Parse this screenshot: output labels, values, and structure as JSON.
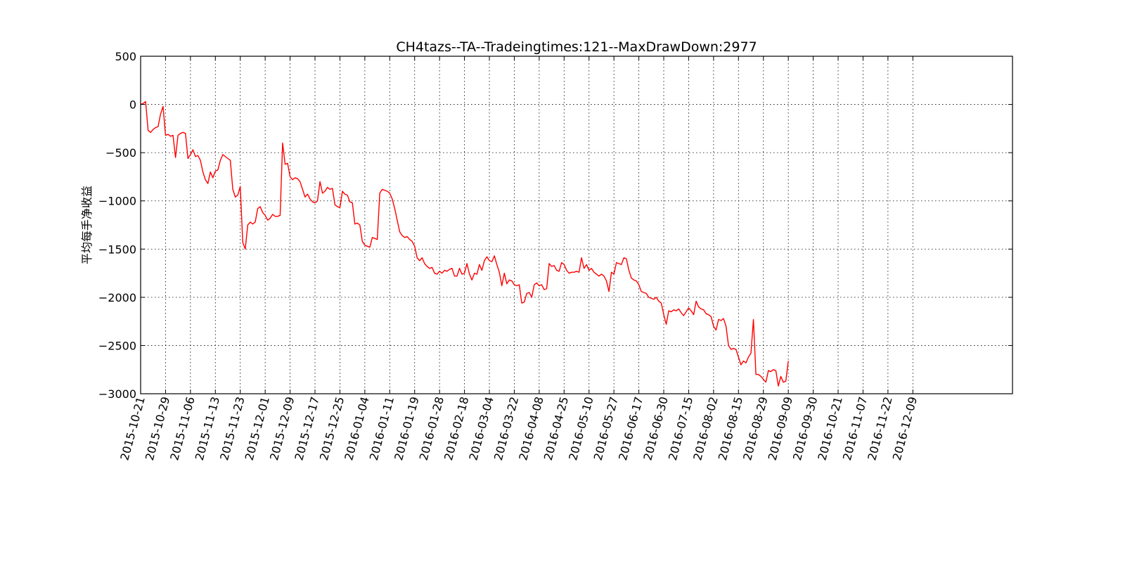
{
  "chart_data": {
    "type": "line",
    "title": "CH4tazs--TA--Tradeingtimes:121--MaxDrawDown:2977",
    "xlabel": "",
    "ylabel": "平均每手净收益",
    "ylim": [
      -3000,
      500
    ],
    "yticks": [
      500,
      0,
      -500,
      -1000,
      -1500,
      -2000,
      -2500,
      -3000
    ],
    "ytick_labels": [
      "500",
      "0",
      "−500",
      "−1000",
      "−1500",
      "−2000",
      "−2500",
      "−3000"
    ],
    "xlim": [
      0,
      350
    ],
    "xticks": [
      0,
      10,
      20,
      30,
      40,
      50,
      60,
      70,
      80,
      90,
      100,
      110,
      120,
      130,
      140,
      150,
      160,
      170,
      180,
      190,
      200,
      210,
      220,
      230,
      240,
      250,
      260,
      270,
      280,
      290,
      300,
      310
    ],
    "xtick_labels": [
      "2015-10-21",
      "2015-10-29",
      "2015-11-06",
      "2015-11-13",
      "2015-11-23",
      "2015-12-01",
      "2015-12-09",
      "2015-12-17",
      "2015-12-25",
      "2016-01-04",
      "2016-01-11",
      "2016-01-19",
      "2016-01-28",
      "2016-02-18",
      "2016-03-04",
      "2016-03-22",
      "2016-04-08",
      "2016-04-25",
      "2016-05-10",
      "2016-05-27",
      "2016-06-17",
      "2016-06-30",
      "2016-07-15",
      "2016-08-02",
      "2016-08-15",
      "2016-08-29",
      "2016-09-09",
      "2016-09-30",
      "2016-10-21",
      "2016-11-07",
      "2016-11-22",
      "2016-12-09"
    ],
    "grid": true,
    "series": [
      {
        "color": "#ff0000",
        "points": [
          [
            0,
            0
          ],
          [
            1,
            10
          ],
          [
            2,
            30
          ],
          [
            3,
            -270
          ],
          [
            4,
            -290
          ],
          [
            5,
            -260
          ],
          [
            6,
            -240
          ],
          [
            7,
            -230
          ],
          [
            8,
            -100
          ],
          [
            9,
            -20
          ],
          [
            10,
            -320
          ],
          [
            11,
            -310
          ],
          [
            12,
            -330
          ],
          [
            13,
            -320
          ],
          [
            14,
            -550
          ],
          [
            15,
            -320
          ],
          [
            16,
            -300
          ],
          [
            17,
            -290
          ],
          [
            18,
            -300
          ],
          [
            19,
            -560
          ],
          [
            20,
            -520
          ],
          [
            21,
            -470
          ],
          [
            22,
            -540
          ],
          [
            23,
            -530
          ],
          [
            24,
            -580
          ],
          [
            25,
            -700
          ],
          [
            26,
            -780
          ],
          [
            27,
            -820
          ],
          [
            28,
            -700
          ],
          [
            29,
            -760
          ],
          [
            30,
            -690
          ],
          [
            31,
            -680
          ],
          [
            32,
            -580
          ],
          [
            33,
            -520
          ],
          [
            34,
            -540
          ],
          [
            35,
            -560
          ],
          [
            36,
            -580
          ],
          [
            37,
            -880
          ],
          [
            38,
            -960
          ],
          [
            39,
            -940
          ],
          [
            40,
            -850
          ],
          [
            41,
            -1430
          ],
          [
            42,
            -1500
          ],
          [
            43,
            -1250
          ],
          [
            44,
            -1220
          ],
          [
            45,
            -1240
          ],
          [
            46,
            -1220
          ],
          [
            47,
            -1080
          ],
          [
            48,
            -1060
          ],
          [
            49,
            -1120
          ],
          [
            50,
            -1150
          ],
          [
            51,
            -1200
          ],
          [
            52,
            -1180
          ],
          [
            53,
            -1140
          ],
          [
            54,
            -1160
          ],
          [
            55,
            -1160
          ],
          [
            56,
            -1150
          ],
          [
            57,
            -400
          ],
          [
            58,
            -620
          ],
          [
            59,
            -610
          ],
          [
            60,
            -750
          ],
          [
            61,
            -780
          ],
          [
            62,
            -760
          ],
          [
            63,
            -770
          ],
          [
            64,
            -800
          ],
          [
            65,
            -880
          ],
          [
            66,
            -960
          ],
          [
            67,
            -930
          ],
          [
            68,
            -980
          ],
          [
            69,
            -1010
          ],
          [
            70,
            -1020
          ],
          [
            71,
            -1000
          ],
          [
            72,
            -800
          ],
          [
            73,
            -920
          ],
          [
            74,
            -900
          ],
          [
            75,
            -860
          ],
          [
            76,
            -880
          ],
          [
            77,
            -870
          ],
          [
            78,
            -1040
          ],
          [
            79,
            -1060
          ],
          [
            80,
            -1070
          ],
          [
            81,
            -900
          ],
          [
            82,
            -930
          ],
          [
            83,
            -940
          ],
          [
            84,
            -1010
          ],
          [
            85,
            -1020
          ],
          [
            86,
            -1240
          ],
          [
            87,
            -1230
          ],
          [
            88,
            -1250
          ],
          [
            89,
            -1420
          ],
          [
            90,
            -1460
          ],
          [
            91,
            -1470
          ],
          [
            92,
            -1480
          ],
          [
            93,
            -1380
          ],
          [
            94,
            -1390
          ],
          [
            95,
            -1400
          ],
          [
            96,
            -920
          ],
          [
            97,
            -880
          ],
          [
            98,
            -890
          ],
          [
            99,
            -900
          ],
          [
            100,
            -920
          ],
          [
            101,
            -980
          ],
          [
            102,
            -1080
          ],
          [
            103,
            -1200
          ],
          [
            104,
            -1320
          ],
          [
            105,
            -1360
          ],
          [
            106,
            -1380
          ],
          [
            107,
            -1370
          ],
          [
            108,
            -1400
          ],
          [
            109,
            -1420
          ],
          [
            110,
            -1470
          ],
          [
            111,
            -1590
          ],
          [
            112,
            -1620
          ],
          [
            113,
            -1590
          ],
          [
            114,
            -1650
          ],
          [
            115,
            -1680
          ],
          [
            116,
            -1700
          ],
          [
            117,
            -1690
          ],
          [
            118,
            -1750
          ],
          [
            119,
            -1760
          ],
          [
            120,
            -1730
          ],
          [
            121,
            -1750
          ],
          [
            122,
            -1720
          ],
          [
            123,
            -1730
          ],
          [
            124,
            -1710
          ],
          [
            125,
            -1700
          ],
          [
            126,
            -1780
          ],
          [
            127,
            -1780
          ],
          [
            128,
            -1700
          ],
          [
            129,
            -1760
          ],
          [
            130,
            -1750
          ],
          [
            131,
            -1650
          ],
          [
            132,
            -1760
          ],
          [
            133,
            -1820
          ],
          [
            134,
            -1750
          ],
          [
            135,
            -1760
          ],
          [
            136,
            -1660
          ],
          [
            137,
            -1720
          ],
          [
            138,
            -1620
          ],
          [
            139,
            -1580
          ],
          [
            140,
            -1620
          ],
          [
            141,
            -1630
          ],
          [
            142,
            -1570
          ],
          [
            143,
            -1660
          ],
          [
            144,
            -1740
          ],
          [
            145,
            -1880
          ],
          [
            146,
            -1750
          ],
          [
            147,
            -1860
          ],
          [
            148,
            -1820
          ],
          [
            149,
            -1830
          ],
          [
            150,
            -1870
          ],
          [
            151,
            -1880
          ],
          [
            152,
            -1870
          ],
          [
            153,
            -2060
          ],
          [
            154,
            -2050
          ],
          [
            155,
            -1960
          ],
          [
            156,
            -1950
          ],
          [
            157,
            -2000
          ],
          [
            158,
            -1870
          ],
          [
            159,
            -1850
          ],
          [
            160,
            -1880
          ],
          [
            161,
            -1870
          ],
          [
            162,
            -1920
          ],
          [
            163,
            -1910
          ],
          [
            164,
            -1650
          ],
          [
            165,
            -1680
          ],
          [
            166,
            -1670
          ],
          [
            167,
            -1720
          ],
          [
            168,
            -1730
          ],
          [
            169,
            -1640
          ],
          [
            170,
            -1660
          ],
          [
            171,
            -1720
          ],
          [
            172,
            -1750
          ],
          [
            173,
            -1740
          ],
          [
            174,
            -1740
          ],
          [
            175,
            -1730
          ],
          [
            176,
            -1740
          ],
          [
            177,
            -1590
          ],
          [
            178,
            -1700
          ],
          [
            179,
            -1660
          ],
          [
            180,
            -1720
          ],
          [
            181,
            -1700
          ],
          [
            182,
            -1740
          ],
          [
            183,
            -1760
          ],
          [
            184,
            -1780
          ],
          [
            185,
            -1760
          ],
          [
            186,
            -1780
          ],
          [
            187,
            -1830
          ],
          [
            188,
            -1940
          ],
          [
            189,
            -1740
          ],
          [
            190,
            -1760
          ],
          [
            191,
            -1640
          ],
          [
            192,
            -1650
          ],
          [
            193,
            -1660
          ],
          [
            194,
            -1590
          ],
          [
            195,
            -1600
          ],
          [
            196,
            -1720
          ],
          [
            197,
            -1800
          ],
          [
            198,
            -1820
          ],
          [
            199,
            -1830
          ],
          [
            200,
            -1870
          ],
          [
            201,
            -1940
          ],
          [
            202,
            -1950
          ],
          [
            203,
            -1960
          ],
          [
            204,
            -2000
          ],
          [
            205,
            -2010
          ],
          [
            206,
            -2020
          ],
          [
            207,
            -2000
          ],
          [
            208,
            -2040
          ],
          [
            209,
            -2060
          ],
          [
            210,
            -2180
          ],
          [
            211,
            -2280
          ],
          [
            212,
            -2140
          ],
          [
            213,
            -2150
          ],
          [
            214,
            -2130
          ],
          [
            215,
            -2140
          ],
          [
            216,
            -2120
          ],
          [
            217,
            -2160
          ],
          [
            218,
            -2190
          ],
          [
            219,
            -2150
          ],
          [
            220,
            -2110
          ],
          [
            221,
            -2140
          ],
          [
            222,
            -2180
          ],
          [
            223,
            -2040
          ],
          [
            224,
            -2100
          ],
          [
            225,
            -2120
          ],
          [
            226,
            -2130
          ],
          [
            227,
            -2170
          ],
          [
            228,
            -2180
          ],
          [
            229,
            -2200
          ],
          [
            230,
            -2300
          ],
          [
            231,
            -2340
          ],
          [
            232,
            -2230
          ],
          [
            233,
            -2240
          ],
          [
            234,
            -2220
          ],
          [
            235,
            -2300
          ],
          [
            236,
            -2500
          ],
          [
            237,
            -2540
          ],
          [
            238,
            -2530
          ],
          [
            239,
            -2540
          ],
          [
            240,
            -2620
          ],
          [
            241,
            -2700
          ],
          [
            242,
            -2660
          ],
          [
            243,
            -2680
          ],
          [
            244,
            -2620
          ],
          [
            245,
            -2580
          ],
          [
            246,
            -2230
          ],
          [
            247,
            -2800
          ],
          [
            248,
            -2800
          ],
          [
            249,
            -2820
          ],
          [
            250,
            -2850
          ],
          [
            251,
            -2880
          ],
          [
            252,
            -2760
          ],
          [
            253,
            -2770
          ],
          [
            254,
            -2750
          ],
          [
            255,
            -2760
          ],
          [
            256,
            -2920
          ],
          [
            257,
            -2820
          ],
          [
            258,
            -2880
          ],
          [
            259,
            -2870
          ],
          [
            260,
            -2660
          ]
        ]
      }
    ]
  }
}
